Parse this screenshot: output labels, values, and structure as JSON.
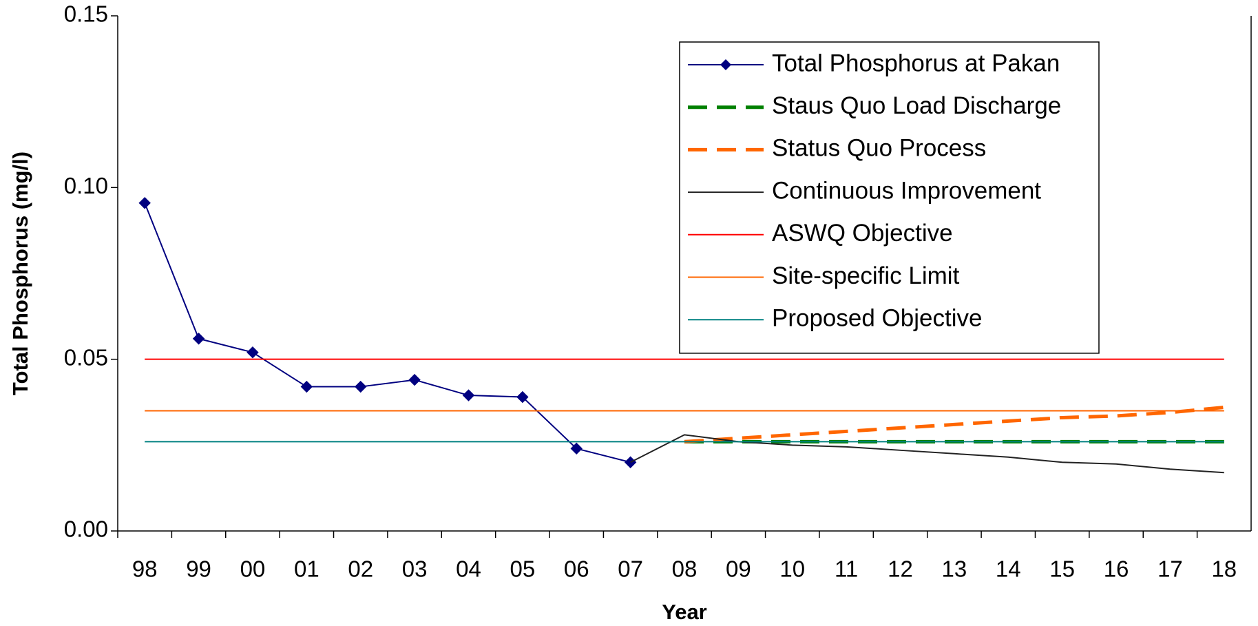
{
  "chart_data": {
    "type": "line",
    "x_label": "Year",
    "y_label": "Total Phosphorus  (mg/l)",
    "categories": [
      "98",
      "99",
      "00",
      "01",
      "02",
      "03",
      "04",
      "05",
      "06",
      "07",
      "08",
      "09",
      "10",
      "11",
      "12",
      "13",
      "14",
      "15",
      "16",
      "17",
      "18"
    ],
    "ylim": [
      0,
      0.15
    ],
    "yticks": [
      {
        "value": 0,
        "label": "0.00"
      },
      {
        "value": 0.05,
        "label": "0.05"
      },
      {
        "value": 0.1,
        "label": "0.10"
      },
      {
        "value": 0.15,
        "label": "0.15"
      }
    ],
    "grid": false,
    "legend": "upper right",
    "series": [
      {
        "name": "Total Phosphorus at Pakan",
        "color": "#000080",
        "marker": "diamond",
        "dash": false,
        "values": [
          0.0955,
          0.056,
          0.052,
          0.042,
          0.042,
          0.044,
          0.0395,
          0.039,
          0.024,
          0.02,
          null,
          null,
          null,
          null,
          null,
          null,
          null,
          null,
          null,
          null,
          null
        ]
      },
      {
        "name": "Staus Quo Load Discharge",
        "color": "#008000",
        "dash": true,
        "values": [
          null,
          null,
          null,
          null,
          null,
          null,
          null,
          null,
          null,
          null,
          0.026,
          0.026,
          0.026,
          0.026,
          0.026,
          0.026,
          0.026,
          0.026,
          0.026,
          0.026,
          0.026
        ]
      },
      {
        "name": "Status Quo Process",
        "color": "#ff6600",
        "dash": true,
        "values": [
          null,
          null,
          null,
          null,
          null,
          null,
          null,
          null,
          null,
          null,
          0.026,
          0.027,
          0.028,
          0.029,
          0.03,
          0.031,
          0.032,
          0.033,
          0.0335,
          0.0345,
          0.036
        ]
      },
      {
        "name": "Continuous Improvement",
        "color": "#222222",
        "dash": false,
        "values": [
          null,
          null,
          null,
          null,
          null,
          null,
          null,
          null,
          null,
          0.02,
          0.028,
          0.026,
          0.025,
          0.0245,
          0.0235,
          0.0225,
          0.0215,
          0.02,
          0.0195,
          0.018,
          0.017
        ]
      },
      {
        "name": "ASWQ Objective",
        "color": "#ff0000",
        "dash": false,
        "values": [
          0.05,
          0.05,
          0.05,
          0.05,
          0.05,
          0.05,
          0.05,
          0.05,
          0.05,
          0.05,
          0.05,
          0.05,
          0.05,
          0.05,
          0.05,
          0.05,
          0.05,
          0.05,
          0.05,
          0.05,
          0.05
        ]
      },
      {
        "name": "Site-specific Limit",
        "color": "#ff6600",
        "dash": false,
        "values": [
          0.035,
          0.035,
          0.035,
          0.035,
          0.035,
          0.035,
          0.035,
          0.035,
          0.035,
          0.035,
          0.035,
          0.035,
          0.035,
          0.035,
          0.035,
          0.035,
          0.035,
          0.035,
          0.035,
          0.035,
          0.035
        ]
      },
      {
        "name": "Proposed Objective",
        "color": "#008080",
        "dash": false,
        "values": [
          0.026,
          0.026,
          0.026,
          0.026,
          0.026,
          0.026,
          0.026,
          0.026,
          0.026,
          0.026,
          0.026,
          0.026,
          0.026,
          0.026,
          0.026,
          0.026,
          0.026,
          0.026,
          0.026,
          0.026,
          0.026
        ]
      }
    ]
  }
}
